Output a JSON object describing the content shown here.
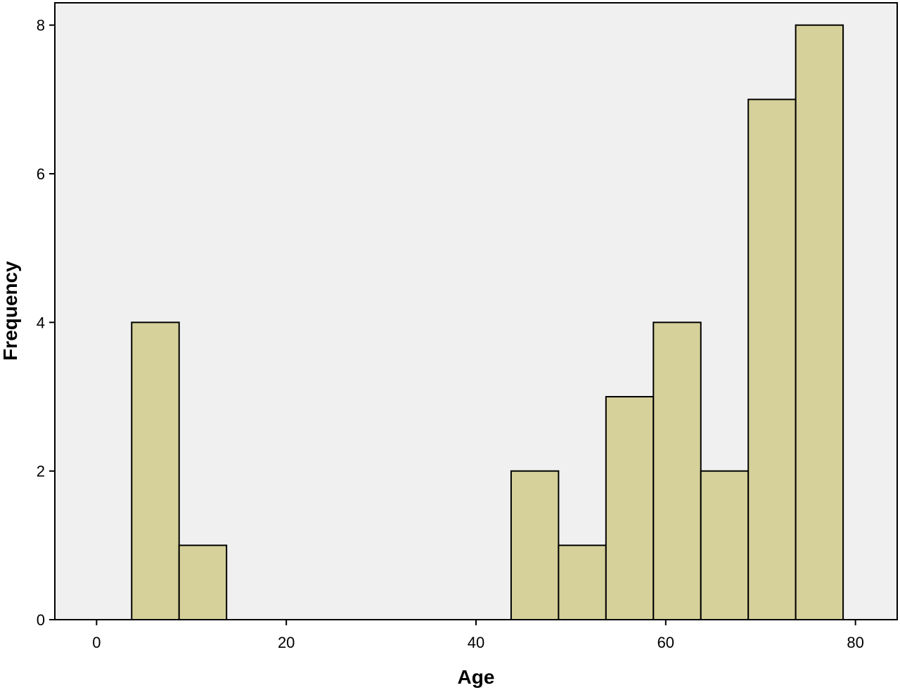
{
  "chart_data": {
    "type": "bar",
    "subtype": "histogram",
    "xlabel": "Age",
    "ylabel": "Frequency",
    "xlim": [
      -4.4,
      84.4
    ],
    "ylim": [
      0,
      8.3
    ],
    "x_ticks": [
      0,
      20,
      40,
      60,
      80
    ],
    "y_ticks": [
      0,
      2,
      4,
      6,
      8
    ],
    "bins": [
      {
        "start": 3.7,
        "end": 8.7,
        "value": 4
      },
      {
        "start": 8.7,
        "end": 13.7,
        "value": 1
      },
      {
        "start": 43.7,
        "end": 48.7,
        "value": 2
      },
      {
        "start": 48.7,
        "end": 53.7,
        "value": 1
      },
      {
        "start": 53.7,
        "end": 58.7,
        "value": 3
      },
      {
        "start": 58.7,
        "end": 63.7,
        "value": 4
      },
      {
        "start": 63.7,
        "end": 68.7,
        "value": 2
      },
      {
        "start": 68.7,
        "end": 73.7,
        "value": 7
      },
      {
        "start": 73.7,
        "end": 78.7,
        "value": 8
      }
    ],
    "grid": false,
    "legend": "none",
    "colors": {
      "bar_fill": "#d6d19a",
      "bar_stroke": "#000000",
      "plot_background": "#f0f0f0"
    }
  }
}
